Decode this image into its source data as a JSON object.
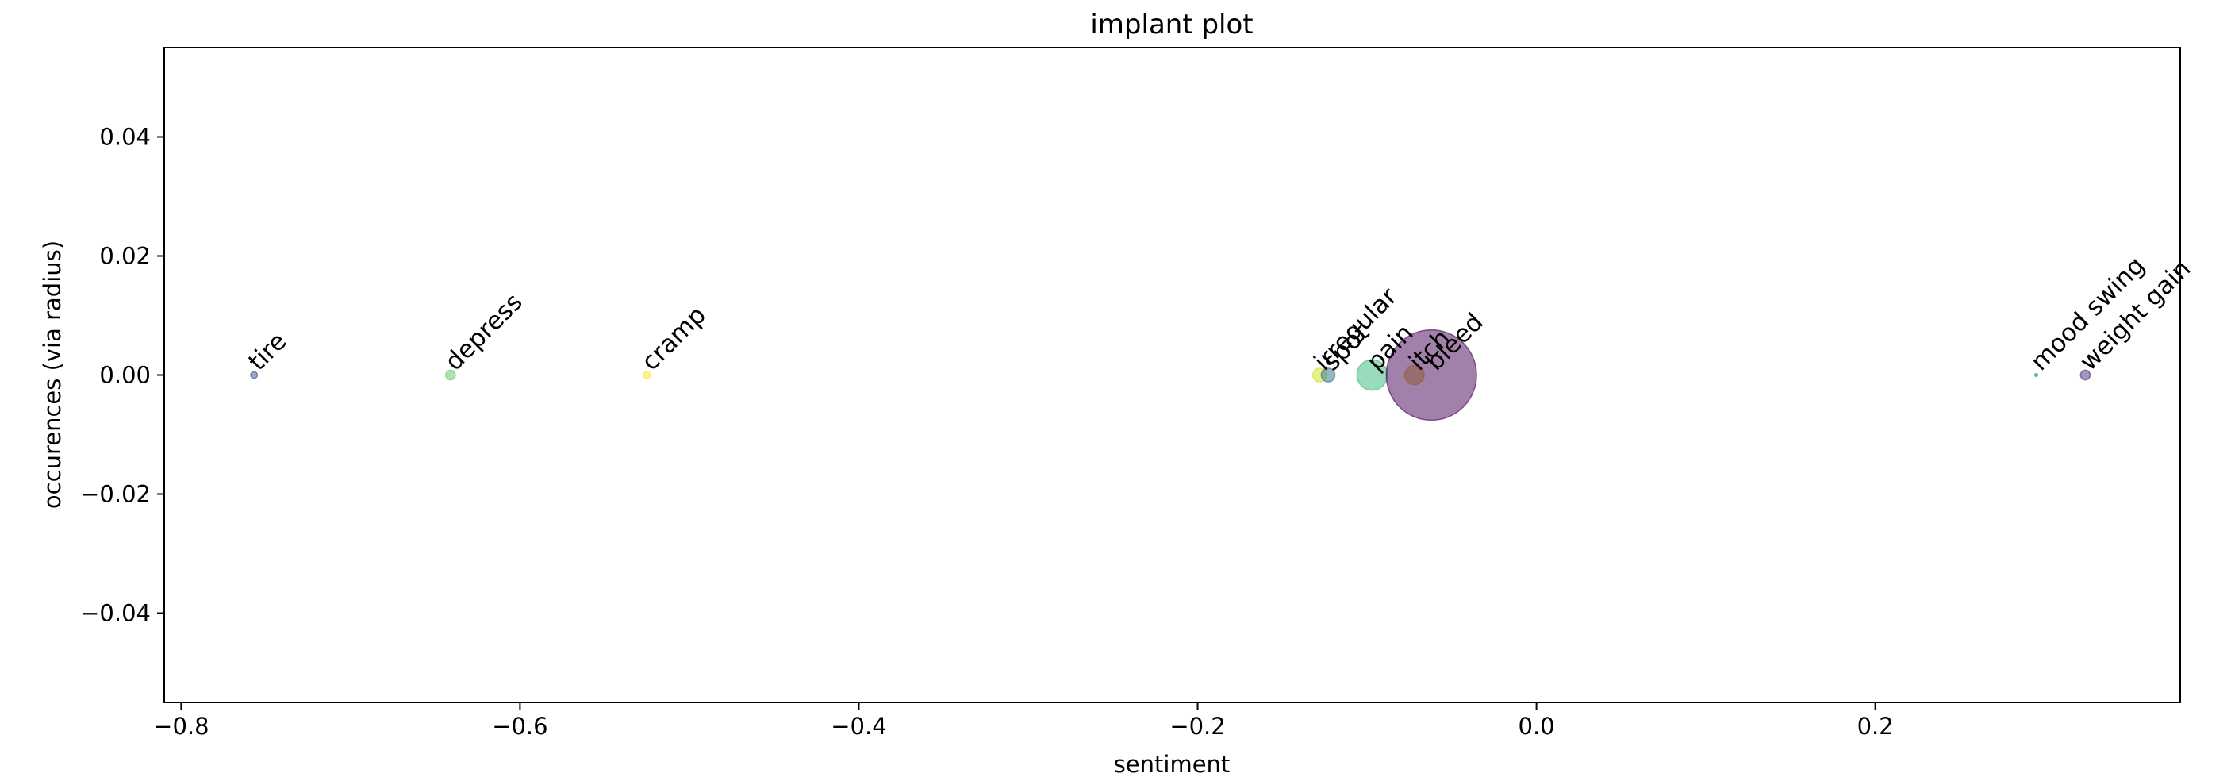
{
  "chart_data": {
    "type": "scatter",
    "title": "implant plot",
    "xlabel": "sentiment",
    "ylabel": "occurences (via radius)",
    "xlim": [
      -0.81,
      0.38
    ],
    "ylim": [
      -0.055,
      0.055
    ],
    "x_ticks": [
      -0.8,
      -0.6,
      -0.4,
      -0.2,
      0.0,
      0.2
    ],
    "x_tick_labels": [
      "−0.8",
      "−0.6",
      "−0.4",
      "−0.2",
      "0.0",
      "0.2"
    ],
    "y_ticks": [
      0.04,
      0.02,
      0.0,
      -0.02,
      -0.04
    ],
    "y_tick_labels": [
      "0.04",
      "0.02",
      "0.00",
      "−0.02",
      "−0.04"
    ],
    "grid": false,
    "points": [
      {
        "label": "tire",
        "x": -0.757,
        "y": 0.0,
        "occurrences": 1,
        "color": "#3b528b"
      },
      {
        "label": "depress",
        "x": -0.641,
        "y": 0.0,
        "occurrences": 2,
        "color": "#5ec962"
      },
      {
        "label": "cramp",
        "x": -0.525,
        "y": 0.0,
        "occurrences": 1,
        "color": "#fde725"
      },
      {
        "label": "irregular",
        "x": -0.128,
        "y": 0.0,
        "occurrences": 4,
        "color": "#d2e21b"
      },
      {
        "label": "spot",
        "x": -0.123,
        "y": 0.0,
        "occurrences": 4,
        "color": "#2c728e"
      },
      {
        "label": "pain",
        "x": -0.097,
        "y": 0.0,
        "occurrences": 20,
        "color": "#35b779"
      },
      {
        "label": "itch",
        "x": -0.072,
        "y": 0.0,
        "occurrences": 8,
        "color": "#d9b310"
      },
      {
        "label": "bleed",
        "x": -0.062,
        "y": 0.0,
        "occurrences": 175,
        "color": "#440154"
      },
      {
        "label": "mood swing",
        "x": 0.295,
        "y": 0.0,
        "occurrences": 0.2,
        "color": "#21918c"
      },
      {
        "label": "weight gain",
        "x": 0.324,
        "y": 0.0,
        "occurrences": 2,
        "color": "#472d7b"
      }
    ]
  }
}
